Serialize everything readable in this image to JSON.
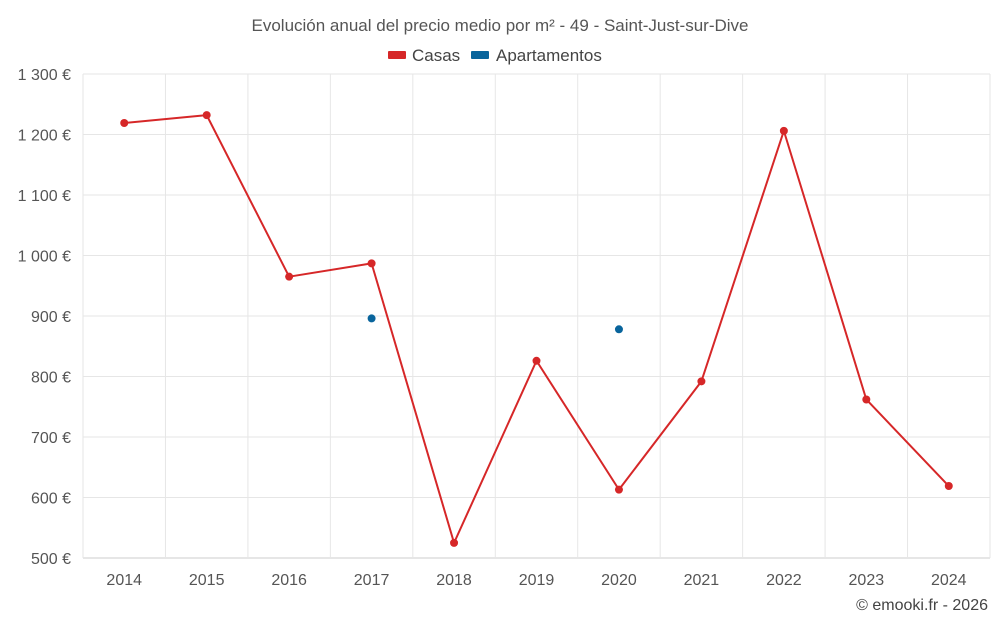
{
  "chart_data": {
    "type": "line",
    "title": "Evolución anual del precio medio por m² - 49 - Saint-Just-sur-Dive",
    "categories": [
      "2014",
      "2015",
      "2016",
      "2017",
      "2018",
      "2019",
      "2020",
      "2021",
      "2022",
      "2023",
      "2024"
    ],
    "series": [
      {
        "name": "Casas",
        "color": "#d62728",
        "values": [
          1219,
          1232,
          965,
          987,
          525,
          826,
          613,
          792,
          1206,
          762,
          619
        ]
      },
      {
        "name": "Apartamentos",
        "color": "#08649c",
        "values": [
          null,
          null,
          null,
          896,
          null,
          null,
          878,
          null,
          null,
          null,
          null
        ]
      }
    ],
    "ylim": [
      500,
      1300
    ],
    "yticks": [
      500,
      600,
      700,
      800,
      900,
      1000,
      1100,
      1200,
      1300
    ],
    "ytick_labels": [
      "500 €",
      "600 €",
      "700 €",
      "800 €",
      "900 €",
      "1 000 €",
      "1 100 €",
      "1 200 €",
      "1 300 €"
    ],
    "xlabel": "",
    "ylabel": "",
    "grid": true,
    "legend_position": "top-center"
  },
  "credit": "© emooki.fr - 2026"
}
